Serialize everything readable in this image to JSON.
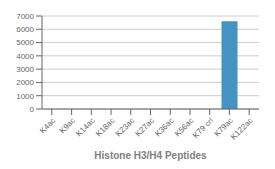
{
  "chart_data": {
    "type": "bar",
    "xlabel": "Histone H3/H4 Peptides",
    "categories": [
      "K4ac",
      "K9ac",
      "K14ac",
      "K18ac",
      "K23ac",
      "K27ac",
      "K36ac",
      "K56ac",
      "K79 crl",
      "K79ac",
      "K122ac"
    ],
    "values": [
      5,
      5,
      5,
      5,
      5,
      5,
      5,
      5,
      5,
      6600,
      5
    ],
    "colors": [
      "#92C5DE",
      "#92C5DE",
      "#92C5DE",
      "#92C5DE",
      "#92C5DE",
      "#92C5DE",
      "#92C5DE",
      "#92C5DE",
      "#92C5DE",
      "#4393C3",
      "#92C5DE"
    ],
    "ylim": [
      0,
      7000
    ],
    "yticks": [
      0,
      1000,
      2000,
      3000,
      4000,
      5000,
      6000,
      7000
    ],
    "grid": true
  }
}
